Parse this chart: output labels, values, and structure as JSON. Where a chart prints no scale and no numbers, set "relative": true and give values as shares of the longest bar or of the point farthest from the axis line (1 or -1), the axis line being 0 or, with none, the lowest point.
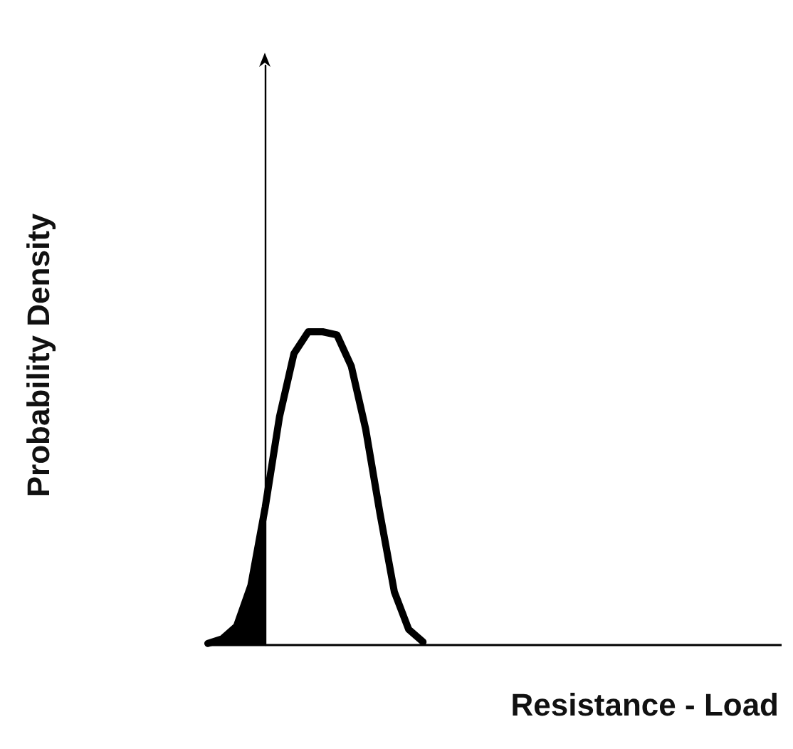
{
  "chart_data": {
    "type": "line",
    "relative": true,
    "xlabel": "Resistance - Load",
    "ylabel": "Probability Density",
    "categories": [
      null,
      null,
      null,
      null,
      null,
      null,
      null,
      null,
      null,
      null,
      null,
      null,
      null,
      null,
      null,
      null,
      null,
      null,
      null,
      null,
      null,
      null,
      null,
      null,
      null,
      null,
      null,
      null,
      null,
      null,
      null,
      null,
      null,
      null,
      null,
      null,
      null,
      null,
      null,
      null,
      null
    ],
    "series": [
      {
        "color": "#000000",
        "values": [
          0.005,
          0.02,
          0.06,
          0.19,
          0.44,
          0.73,
          0.93,
          1.0,
          1.0,
          0.99,
          0.89,
          0.69,
          0.42,
          0.17,
          0.05,
          0.01,
          null,
          null,
          null,
          null,
          null,
          null,
          null,
          null,
          null,
          null,
          null,
          null,
          null,
          null,
          null,
          null,
          null,
          null,
          null,
          null,
          null,
          null,
          null,
          null,
          null
        ]
      },
      {
        "type": "area",
        "color": "#000000",
        "values": [
          0.005,
          0.02,
          0.06,
          0.19,
          0.44,
          null,
          null,
          null,
          null,
          null,
          null,
          null,
          null,
          null,
          null,
          null,
          null,
          null,
          null,
          null,
          null,
          null,
          null,
          null,
          null,
          null,
          null,
          null,
          null,
          null,
          null,
          null,
          null,
          null,
          null,
          null,
          null,
          null,
          null,
          null,
          null
        ]
      }
    ],
    "marker": "none",
    "line_style": "solid",
    "grid": false
  }
}
